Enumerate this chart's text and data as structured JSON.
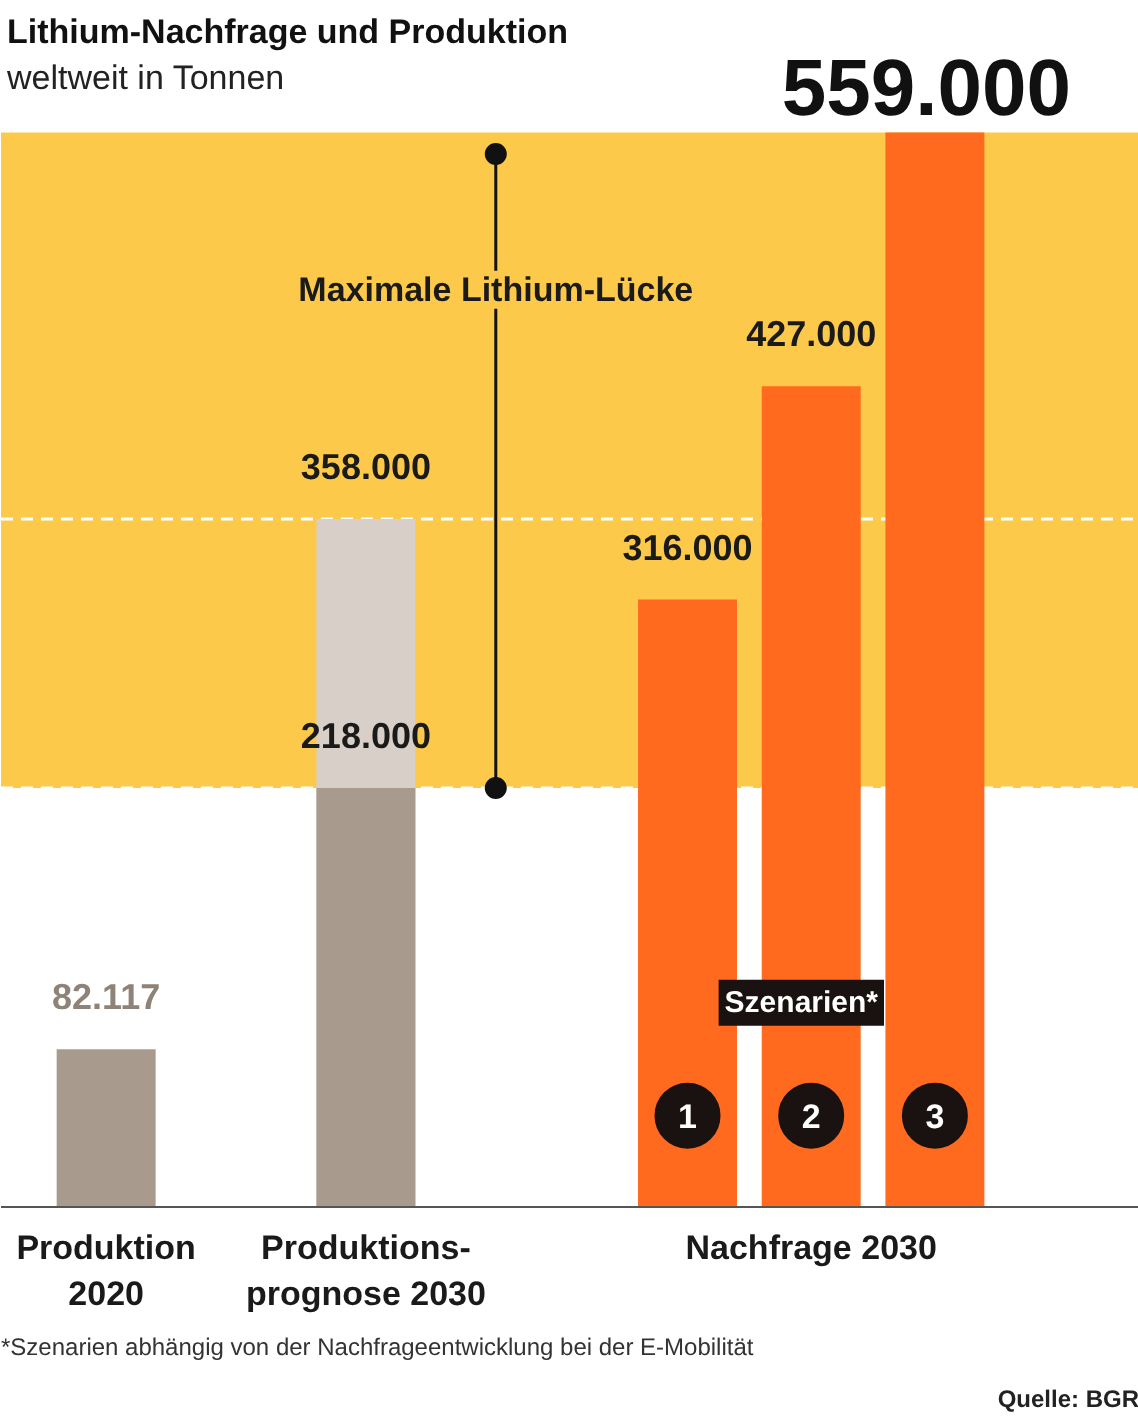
{
  "chart_data": {
    "type": "bar",
    "title": "Lithium-Nachfrage und Produktion",
    "subtitle": "weltweit in Tonnen",
    "categories": [
      "Produktion\n2020",
      "Produktions-\nprognose 2030",
      null,
      "Nachfrage 2030",
      null
    ],
    "series": [
      {
        "color": "#d7cfc8",
        "values": [
          null,
          358000,
          null,
          null,
          null
        ],
        "value_labels": [
          null,
          "358.000",
          null,
          null,
          null
        ]
      },
      {
        "colors": [
          "#a89b8e",
          "#a89b8e",
          "#ff6a1f",
          "#ff6a1f",
          "#ff6a1f"
        ],
        "values": [
          82117,
          218000,
          316000,
          427000,
          559000
        ],
        "value_labels": [
          "82.117",
          "218.000",
          "316.000",
          "427.000",
          "559.000"
        ]
      }
    ],
    "bands": [
      {
        "axis": "y",
        "from": 218000,
        "to": 559000,
        "label": "Maximale Lithium-Lücke",
        "color": "#fdc94a"
      }
    ],
    "ref_lines": [
      {
        "axis": "y",
        "value": 358000,
        "color": "#ffffff",
        "line_style": "dashed"
      },
      {
        "axis": "y",
        "value": 218000,
        "color": "#ffffff",
        "line_style": "dashed"
      }
    ],
    "annotations": [
      "Szenarien*",
      "1",
      "2",
      "3",
      "*Szenarien abhängig von der Nachfrageentwicklung bei der E-Mobilität",
      "Quelle: BGR"
    ],
    "grid": false
  }
}
